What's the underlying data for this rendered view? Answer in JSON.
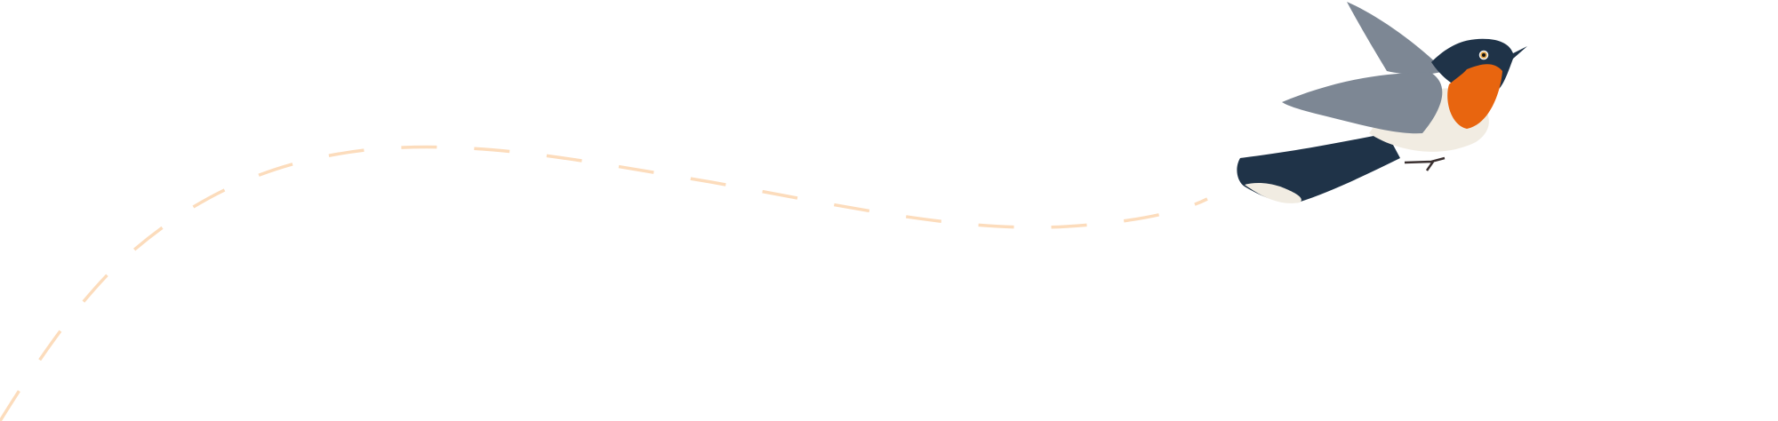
{
  "illustration": {
    "subject": "bird-in-flight",
    "colors": {
      "background": "#ffffff",
      "flight_path": "#fcdcbc",
      "bird_back": "#1f3348",
      "bird_throat": "#e8650f",
      "bird_belly": "#f1ece2",
      "bird_wing": "#7d8794"
    }
  }
}
